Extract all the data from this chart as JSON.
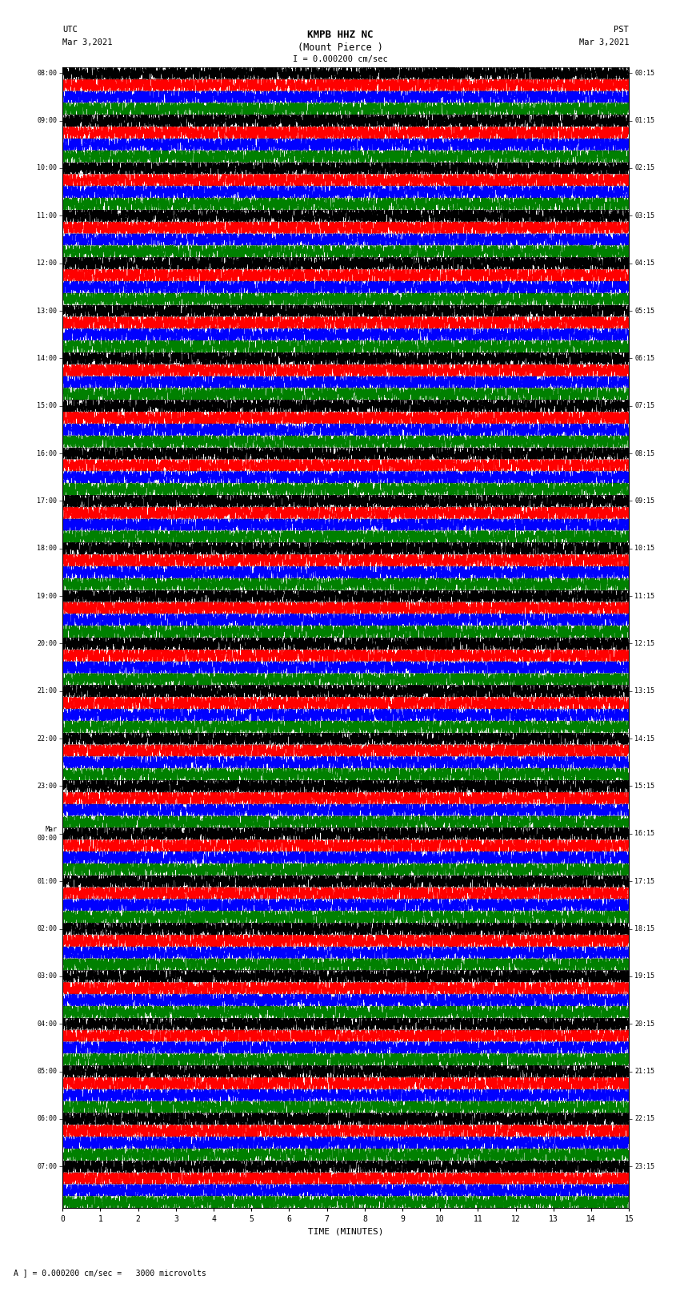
{
  "title_line1": "KMPB HHZ NC",
  "title_line2": "(Mount Pierce )",
  "title_scale": "I = 0.000200 cm/sec",
  "left_label_top": "UTC",
  "left_label_date": "Mar 3,2021",
  "right_label_top": "PST",
  "right_label_date": "Mar 3,2021",
  "xlabel": "TIME (MINUTES)",
  "scale_text": "A ] = 0.000200 cm/sec =   3000 microvolts",
  "utc_times": [
    "08:00",
    "",
    "",
    "",
    "09:00",
    "",
    "",
    "",
    "10:00",
    "",
    "",
    "",
    "11:00",
    "",
    "",
    "",
    "12:00",
    "",
    "",
    "",
    "13:00",
    "",
    "",
    "",
    "14:00",
    "",
    "",
    "",
    "15:00",
    "",
    "",
    "",
    "16:00",
    "",
    "",
    "",
    "17:00",
    "",
    "",
    "",
    "18:00",
    "",
    "",
    "",
    "19:00",
    "",
    "",
    "",
    "20:00",
    "",
    "",
    "",
    "21:00",
    "",
    "",
    "",
    "22:00",
    "",
    "",
    "",
    "23:00",
    "",
    "",
    "",
    "Mar\n00:00",
    "",
    "",
    "",
    "01:00",
    "",
    "",
    "",
    "02:00",
    "",
    "",
    "",
    "03:00",
    "",
    "",
    "",
    "04:00",
    "",
    "",
    "",
    "05:00",
    "",
    "",
    "",
    "06:00",
    "",
    "",
    "",
    "07:00",
    "",
    "",
    ""
  ],
  "pst_times": [
    "00:15",
    "",
    "",
    "",
    "01:15",
    "",
    "",
    "",
    "02:15",
    "",
    "",
    "",
    "03:15",
    "",
    "",
    "",
    "04:15",
    "",
    "",
    "",
    "05:15",
    "",
    "",
    "",
    "06:15",
    "",
    "",
    "",
    "07:15",
    "",
    "",
    "",
    "08:15",
    "",
    "",
    "",
    "09:15",
    "",
    "",
    "",
    "10:15",
    "",
    "",
    "",
    "11:15",
    "",
    "",
    "",
    "12:15",
    "",
    "",
    "",
    "13:15",
    "",
    "",
    "",
    "14:15",
    "",
    "",
    "",
    "15:15",
    "",
    "",
    "",
    "16:15",
    "",
    "",
    "",
    "17:15",
    "",
    "",
    "",
    "18:15",
    "",
    "",
    "",
    "19:15",
    "",
    "",
    "",
    "20:15",
    "",
    "",
    "",
    "21:15",
    "",
    "",
    "",
    "22:15",
    "",
    "",
    "",
    "23:15",
    "",
    "",
    ""
  ],
  "n_hour_blocks": 24,
  "sub_rows_per_block": 4,
  "minutes_per_row": 15,
  "colors": [
    "black",
    "red",
    "blue",
    "green"
  ],
  "background_color": "white",
  "fig_width": 8.5,
  "fig_height": 16.13,
  "dpi": 100
}
